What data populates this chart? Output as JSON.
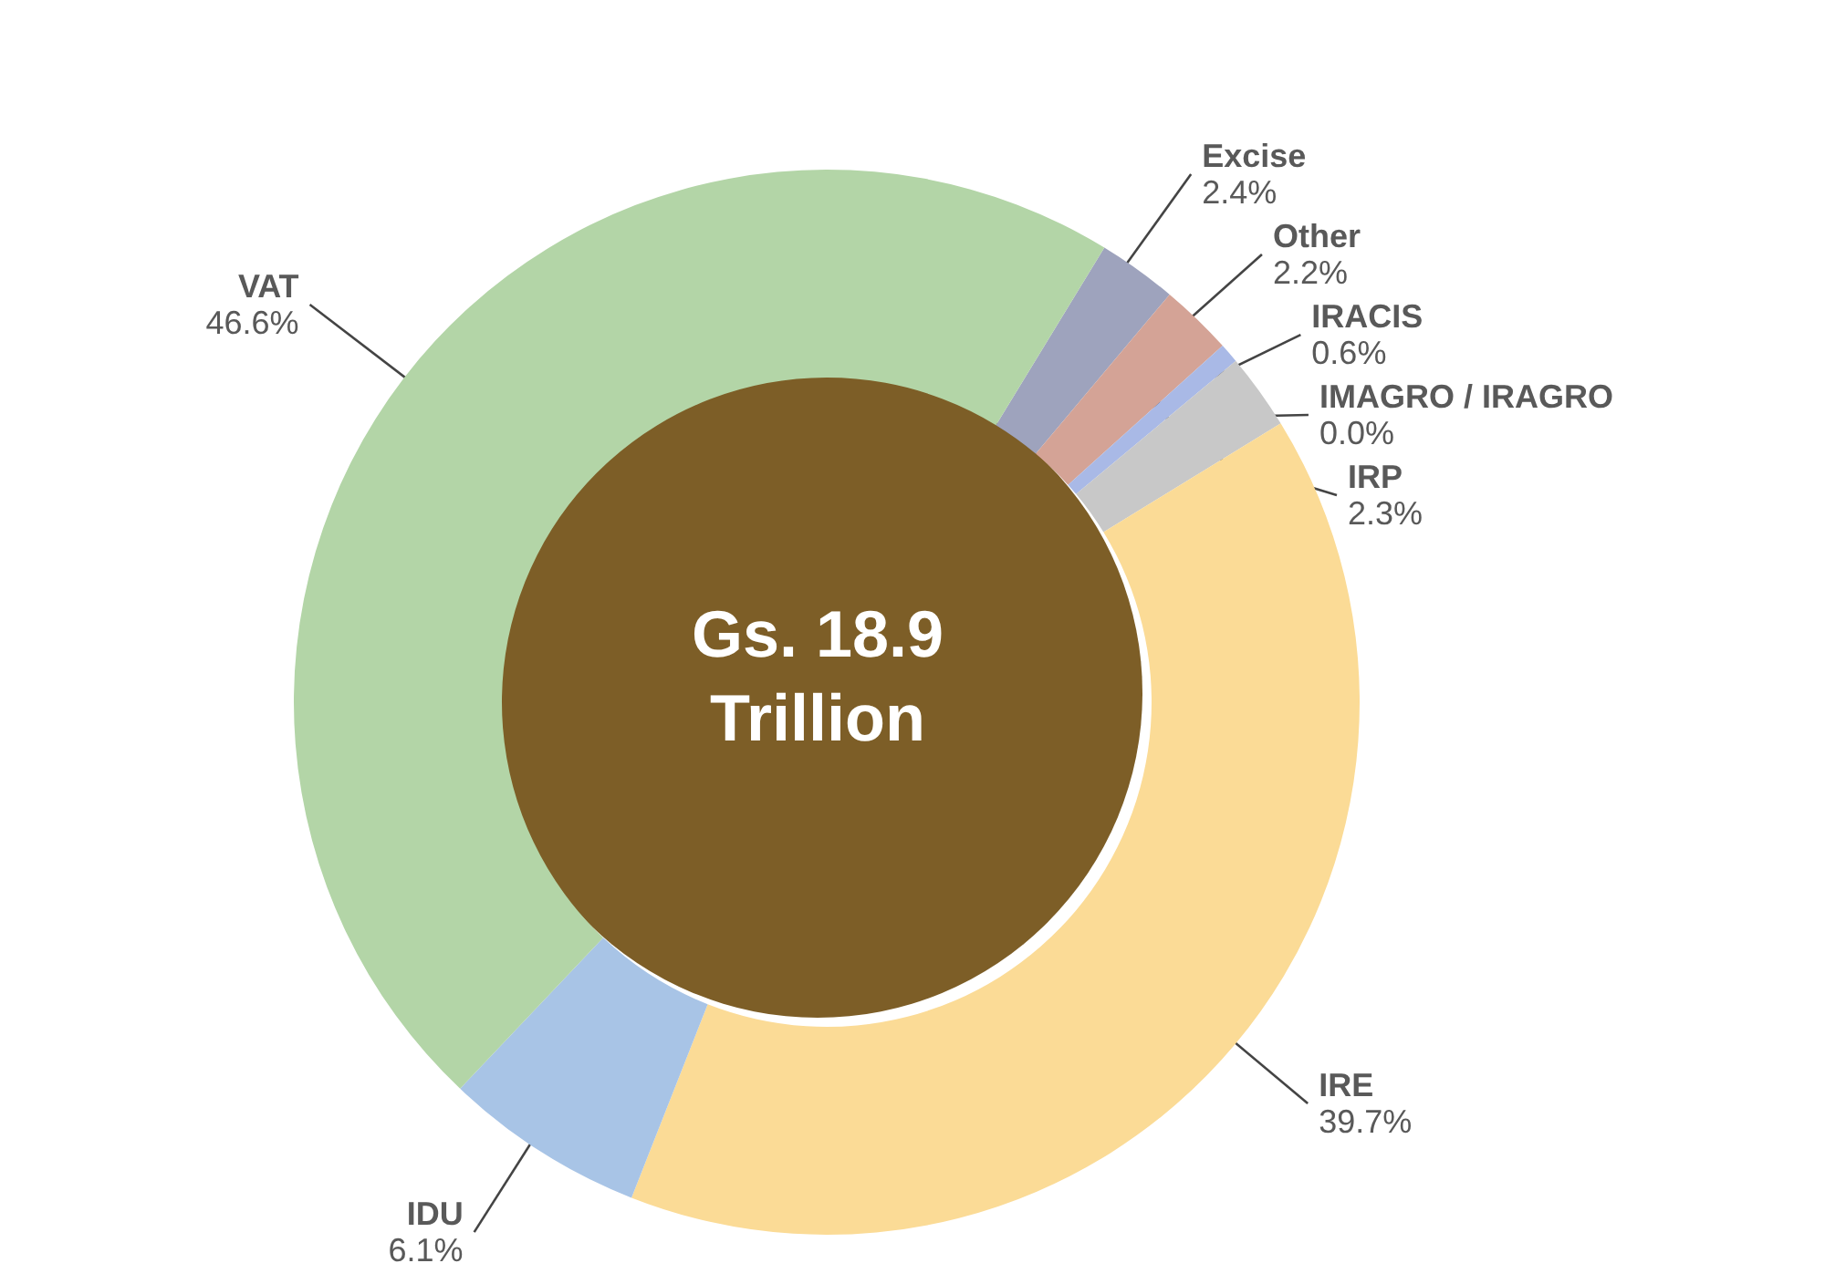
{
  "chart_data": {
    "type": "donut",
    "categories": [
      "Excise",
      "Other",
      "IRACIS",
      "IMAGRO / IRAGRO",
      "IRP",
      "IRE",
      "IDU",
      "VAT"
    ],
    "values": [
      2.4,
      2.2,
      0.6,
      0.0,
      2.3,
      39.7,
      6.1,
      46.6
    ],
    "value_labels": [
      "2.4%",
      "2.2%",
      "0.6%",
      "0.0%",
      "2.3%",
      "39.7%",
      "6.1%",
      "46.6%"
    ],
    "colors": [
      "#9ea3bd",
      "#d4a396",
      "#a9b9e6",
      "#e06060",
      "#c8c8c8",
      "#fbdb96",
      "#a8c4e6",
      "#b3d5a7"
    ],
    "annotations": [
      "Gs. 18.9 Trillion"
    ]
  }
}
